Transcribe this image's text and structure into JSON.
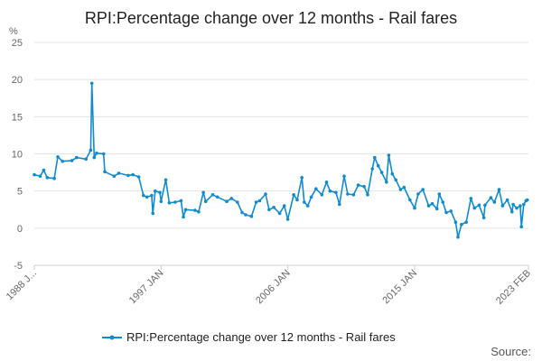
{
  "chart_data": {
    "type": "line",
    "title": "RPI:Percentage change over 12 months - Rail fares",
    "ylabel": "%",
    "xlabel": "",
    "ylim": [
      -5,
      25
    ],
    "y_ticks": [
      "25",
      "20",
      "15",
      "10",
      "5",
      "0",
      "-5"
    ],
    "x_range": [
      "1988-01",
      "2023-02"
    ],
    "x_ticks": [
      "1988 J...",
      "1997 JAN",
      "2006 JAN",
      "2015 JAN",
      "2023 FEB"
    ],
    "grid": "horizontal",
    "legend_position": "bottom",
    "series": [
      {
        "name": "RPI:Percentage change over 12 months - Rail fares",
        "color": "#0f8cd0",
        "points": [
          [
            "1988-01",
            7.2
          ],
          [
            "1988-06",
            7.0
          ],
          [
            "1988-09",
            7.8
          ],
          [
            "1988-12",
            6.8
          ],
          [
            "1989-06",
            6.7
          ],
          [
            "1989-09",
            9.6
          ],
          [
            "1990-01",
            9.0
          ],
          [
            "1990-09",
            9.1
          ],
          [
            "1991-01",
            9.5
          ],
          [
            "1991-09",
            9.3
          ],
          [
            "1992-01",
            10.5
          ],
          [
            "1992-02",
            19.5
          ],
          [
            "1992-04",
            9.5
          ],
          [
            "1992-06",
            10.1
          ],
          [
            "1992-12",
            10.0
          ],
          [
            "1993-01",
            7.6
          ],
          [
            "1993-09",
            7.0
          ],
          [
            "1994-01",
            7.4
          ],
          [
            "1994-09",
            7.1
          ],
          [
            "1995-01",
            7.2
          ],
          [
            "1995-06",
            6.9
          ],
          [
            "1995-10",
            4.4
          ],
          [
            "1996-01",
            4.2
          ],
          [
            "1996-05",
            4.4
          ],
          [
            "1996-06",
            2.0
          ],
          [
            "1996-08",
            5.0
          ],
          [
            "1996-12",
            4.8
          ],
          [
            "1997-01",
            3.6
          ],
          [
            "1997-05",
            6.5
          ],
          [
            "1997-08",
            3.4
          ],
          [
            "1998-01",
            3.5
          ],
          [
            "1998-06",
            3.7
          ],
          [
            "1998-08",
            1.5
          ],
          [
            "1998-10",
            2.5
          ],
          [
            "1999-06",
            2.4
          ],
          [
            "1999-09",
            2.2
          ],
          [
            "2000-01",
            4.8
          ],
          [
            "2000-03",
            3.6
          ],
          [
            "2000-09",
            4.5
          ],
          [
            "2001-01",
            4.2
          ],
          [
            "2001-09",
            3.6
          ],
          [
            "2002-01",
            4.0
          ],
          [
            "2002-06",
            3.5
          ],
          [
            "2002-10",
            2.1
          ],
          [
            "2003-01",
            1.8
          ],
          [
            "2003-06",
            1.6
          ],
          [
            "2003-10",
            3.5
          ],
          [
            "2004-01",
            3.7
          ],
          [
            "2004-06",
            4.6
          ],
          [
            "2004-09",
            2.5
          ],
          [
            "2005-01",
            2.8
          ],
          [
            "2005-06",
            2.0
          ],
          [
            "2005-10",
            3.0
          ],
          [
            "2006-01",
            1.2
          ],
          [
            "2006-06",
            4.5
          ],
          [
            "2006-09",
            3.8
          ],
          [
            "2007-01",
            6.8
          ],
          [
            "2007-03",
            3.5
          ],
          [
            "2007-06",
            3.0
          ],
          [
            "2007-09",
            4.2
          ],
          [
            "2008-01",
            5.3
          ],
          [
            "2008-06",
            4.5
          ],
          [
            "2008-10",
            6.2
          ],
          [
            "2009-01",
            5.0
          ],
          [
            "2009-06",
            4.8
          ],
          [
            "2009-09",
            3.2
          ],
          [
            "2010-01",
            7.0
          ],
          [
            "2010-04",
            4.6
          ],
          [
            "2010-09",
            4.5
          ],
          [
            "2011-01",
            5.8
          ],
          [
            "2011-06",
            5.6
          ],
          [
            "2011-09",
            4.5
          ],
          [
            "2012-01",
            8.0
          ],
          [
            "2012-03",
            9.5
          ],
          [
            "2012-06",
            8.4
          ],
          [
            "2012-09",
            7.5
          ],
          [
            "2013-01",
            6.2
          ],
          [
            "2013-03",
            9.8
          ],
          [
            "2013-06",
            7.3
          ],
          [
            "2013-09",
            6.5
          ],
          [
            "2014-01",
            5.2
          ],
          [
            "2014-04",
            5.5
          ],
          [
            "2014-09",
            3.8
          ],
          [
            "2015-01",
            2.7
          ],
          [
            "2015-04",
            4.6
          ],
          [
            "2015-08",
            5.2
          ],
          [
            "2016-01",
            3.0
          ],
          [
            "2016-04",
            3.3
          ],
          [
            "2016-08",
            2.6
          ],
          [
            "2016-10",
            4.6
          ],
          [
            "2017-01",
            3.5
          ],
          [
            "2017-04",
            2.1
          ],
          [
            "2017-08",
            2.3
          ],
          [
            "2017-12",
            0.8
          ],
          [
            "2018-02",
            -1.2
          ],
          [
            "2018-05",
            0.5
          ],
          [
            "2018-09",
            0.8
          ],
          [
            "2019-01",
            4.0
          ],
          [
            "2019-04",
            2.7
          ],
          [
            "2019-08",
            3.1
          ],
          [
            "2019-12",
            1.4
          ],
          [
            "2020-01",
            3.1
          ],
          [
            "2020-06",
            4.1
          ],
          [
            "2020-09",
            3.5
          ],
          [
            "2021-01",
            5.2
          ],
          [
            "2021-04",
            3.0
          ],
          [
            "2021-08",
            3.8
          ],
          [
            "2021-12",
            2.2
          ],
          [
            "2022-01",
            3.2
          ],
          [
            "2022-04",
            2.7
          ],
          [
            "2022-07",
            3.0
          ],
          [
            "2022-08",
            0.2
          ],
          [
            "2022-10",
            3.2
          ],
          [
            "2022-12",
            3.7
          ],
          [
            "2023-01",
            3.8
          ]
        ]
      }
    ]
  },
  "legend": {
    "label": "RPI:Percentage change over 12 months - Rail fares"
  },
  "source": {
    "label": "Source:"
  }
}
